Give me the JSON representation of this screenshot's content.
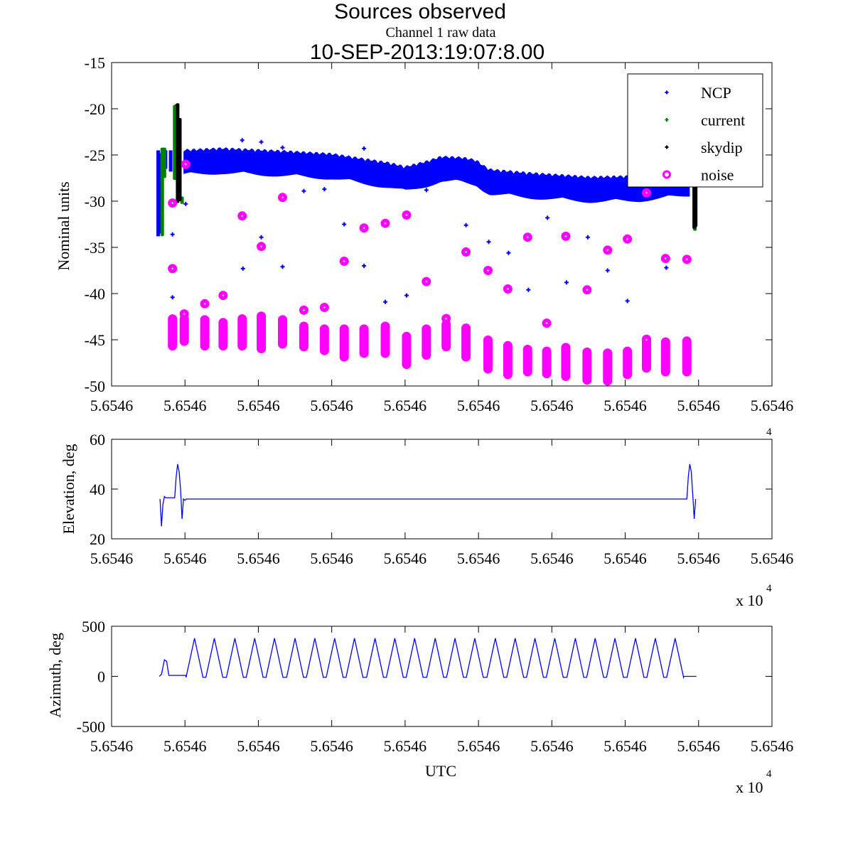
{
  "chart_data": [
    {
      "type": "scatter",
      "title": "Sources observed",
      "title_line2": "10-SEP-2013:19:07:8.00",
      "subtitle": "Channel 1 raw data",
      "xlabel": "",
      "ylabel": "Nominal units",
      "xlim": [
        0,
        900
      ],
      "x_tick_values": [
        0,
        100,
        200,
        300,
        400,
        500,
        600,
        700,
        800,
        900
      ],
      "x_tick_labels": [
        "5.6546",
        "5.6546",
        "5.6546",
        "5.6546",
        "5.6546",
        "5.6546",
        "5.6546",
        "5.6546",
        "5.6546",
        "5.6546"
      ],
      "x_multiplier": {
        "base": "x 10",
        "exp": "4"
      },
      "ylim": [
        -50,
        -15
      ],
      "y_ticks": [
        -15,
        -20,
        -25,
        -30,
        -35,
        -40,
        -45,
        -50
      ],
      "y_tick_labels": [
        "-15",
        "-20",
        "-25",
        "-30",
        "-35",
        "-40",
        "-45",
        "-50"
      ],
      "legend": {
        "placement": "top-right",
        "entries": [
          {
            "label": "NCP",
            "color": "#0000ff",
            "marker": "dot"
          },
          {
            "label": "current",
            "color": "#008000",
            "marker": "dot"
          },
          {
            "label": "skydip",
            "color": "#000000",
            "marker": "dot"
          },
          {
            "label": "noise",
            "color": "#ff00ff",
            "marker": "circle"
          }
        ]
      },
      "series": {
        "NCP_band": {
          "half_width": 1.1,
          "center": [
            [
              98,
              -25.8
            ],
            [
              150,
              -25.6
            ],
            [
              235,
              -25.9
            ],
            [
              300,
              -26.2
            ],
            [
              332,
              -26.6
            ],
            [
              380,
              -27.2
            ],
            [
              400,
              -27.6
            ],
            [
              430,
              -27.0
            ],
            [
              449,
              -26.5
            ],
            [
              478,
              -26.6
            ],
            [
              497,
              -26.9
            ],
            [
              507,
              -27.5
            ],
            [
              516,
              -27.9
            ],
            [
              575,
              -28.3
            ],
            [
              652,
              -28.7
            ],
            [
              720,
              -28.6
            ],
            [
              790,
              -28.0
            ]
          ]
        },
        "NCP_start_spike": [
          [
            63,
            -24.5,
            -33.8
          ],
          [
            66,
            -24.8,
            -33.5
          ],
          [
            73,
            -24.5,
            -26.5
          ],
          [
            80,
            -24.5,
            -26.8
          ],
          [
            87,
            -24.2,
            -27.0
          ]
        ],
        "NCP_points": [
          [
            83,
            -40.4
          ],
          [
            101,
            -30.3
          ],
          [
            83,
            -33.6
          ],
          [
            204,
            -33.9
          ],
          [
            179,
            -37.3
          ],
          [
            233,
            -37.1
          ],
          [
            262,
            -28.9
          ],
          [
            290,
            -28.7
          ],
          [
            317,
            -32.5
          ],
          [
            344,
            -37.0
          ],
          [
            373,
            -40.9
          ],
          [
            402,
            -40.2
          ],
          [
            429,
            -28.8
          ],
          [
            483,
            -32.6
          ],
          [
            514,
            -34.4
          ],
          [
            541,
            -35.6
          ],
          [
            568,
            -39.6
          ],
          [
            594,
            -31.8
          ],
          [
            620,
            -38.8
          ],
          [
            649,
            -33.9
          ],
          [
            676,
            -37.5
          ],
          [
            703,
            -40.8
          ],
          [
            756,
            -37.2
          ],
          [
            759,
            -27.8
          ],
          [
            178,
            -23.4
          ],
          [
            204,
            -23.6
          ],
          [
            233,
            -24.2
          ],
          [
            344,
            -24.3
          ]
        ],
        "current": [
          [
            69,
            -24.2,
            -33.8
          ],
          [
            72,
            -24.2,
            -27.5
          ],
          [
            86,
            -19.6,
            -27.7
          ],
          [
            88,
            -19.5,
            -25.0
          ],
          [
            96,
            -29.5,
            -30.3
          ],
          [
            795,
            -32.5,
            -33.2
          ]
        ],
        "skydip": [
          [
            90,
            -19.4,
            -30.2
          ],
          [
            93,
            -21.0,
            -30.0
          ],
          [
            794,
            -27.0,
            -33.0
          ],
          [
            796,
            -28.0,
            -32.8
          ]
        ],
        "noise_clusters": [
          [
            83,
            -42.7,
            -45.7
          ],
          [
            99,
            -42.7,
            -45.2
          ],
          [
            127,
            -42.8,
            -45.7
          ],
          [
            152,
            -43.1,
            -45.7
          ],
          [
            178,
            -42.7,
            -45.7
          ],
          [
            204,
            -42.4,
            -46.0
          ],
          [
            233,
            -42.8,
            -45.5
          ],
          [
            262,
            -43.5,
            -45.8
          ],
          [
            290,
            -43.8,
            -46.2
          ],
          [
            317,
            -43.8,
            -46.9
          ],
          [
            344,
            -43.8,
            -46.5
          ],
          [
            373,
            -43.5,
            -46.5
          ],
          [
            402,
            -44.6,
            -47.7
          ],
          [
            429,
            -43.8,
            -46.7
          ],
          [
            456,
            -43.3,
            -45.8
          ],
          [
            483,
            -43.7,
            -46.9
          ],
          [
            513,
            -45.0,
            -48.2
          ],
          [
            540,
            -45.6,
            -48.8
          ],
          [
            567,
            -46.0,
            -48.5
          ],
          [
            593,
            -46.2,
            -48.7
          ],
          [
            619,
            -45.8,
            -49.0
          ],
          [
            648,
            -46.3,
            -49.4
          ],
          [
            676,
            -46.4,
            -49.5
          ],
          [
            703,
            -46.2,
            -48.8
          ],
          [
            729,
            -44.9,
            -48.1
          ],
          [
            755,
            -45.2,
            -48.5
          ],
          [
            784,
            -45.1,
            -48.5
          ]
        ],
        "noise_points": [
          [
            83,
            -37.3
          ],
          [
            83,
            -30.2
          ],
          [
            99,
            -42.2
          ],
          [
            101,
            -26.0
          ],
          [
            127,
            -41.1
          ],
          [
            152,
            -40.2
          ],
          [
            178,
            -31.6
          ],
          [
            204,
            -34.9
          ],
          [
            233,
            -29.6
          ],
          [
            262,
            -41.8
          ],
          [
            290,
            -41.5
          ],
          [
            317,
            -36.5
          ],
          [
            344,
            -32.9
          ],
          [
            373,
            -32.4
          ],
          [
            402,
            -31.5
          ],
          [
            429,
            -38.7
          ],
          [
            456,
            -42.7
          ],
          [
            483,
            -35.5
          ],
          [
            513,
            -37.5
          ],
          [
            540,
            -39.5
          ],
          [
            567,
            -33.9
          ],
          [
            593,
            -43.2
          ],
          [
            619,
            -33.8
          ],
          [
            648,
            -39.6
          ],
          [
            676,
            -35.3
          ],
          [
            703,
            -34.1
          ],
          [
            729,
            -29.1
          ],
          [
            729,
            -45.0
          ],
          [
            755,
            -36.2
          ],
          [
            784,
            -36.3
          ]
        ]
      }
    },
    {
      "type": "line",
      "ylabel": "Elevation, deg",
      "xlim": [
        0,
        900
      ],
      "x_tick_labels": [
        "5.6546",
        "5.6546",
        "5.6546",
        "5.6546",
        "5.6546",
        "5.6546",
        "5.6546",
        "5.6546",
        "5.6546",
        "5.6546"
      ],
      "x_multiplier": {
        "base": "x 10",
        "exp": "4"
      },
      "ylim": [
        20,
        60
      ],
      "y_ticks": [
        20,
        40,
        60
      ],
      "y_tick_labels": [
        "20",
        "40",
        "60"
      ],
      "color": "#0000ff",
      "points": [
        [
          66,
          36
        ],
        [
          68,
          25
        ],
        [
          70,
          34
        ],
        [
          72,
          37
        ],
        [
          74,
          36.5
        ],
        [
          86,
          36.5
        ],
        [
          88,
          45
        ],
        [
          90,
          50
        ],
        [
          92,
          47
        ],
        [
          94,
          40
        ],
        [
          96,
          28
        ],
        [
          98,
          36
        ],
        [
          100,
          35.5
        ],
        [
          102,
          36
        ],
        [
          784,
          36
        ],
        [
          786,
          45
        ],
        [
          788,
          50
        ],
        [
          790,
          47
        ],
        [
          792,
          38
        ],
        [
          794,
          28
        ],
        [
          796,
          36
        ]
      ]
    },
    {
      "type": "line",
      "ylabel": "Azimuth, deg",
      "xlabel": "UTC",
      "xlim": [
        0,
        900
      ],
      "x_tick_labels": [
        "5.6546",
        "5.6546",
        "5.6546",
        "5.6546",
        "5.6546",
        "5.6546",
        "5.6546",
        "5.6546",
        "5.6546",
        "5.6546"
      ],
      "x_multiplier": {
        "base": "x 10",
        "exp": "4"
      },
      "ylim": [
        -500,
        500
      ],
      "y_ticks": [
        500,
        0,
        -500
      ],
      "y_tick_labels": [
        "500",
        "0",
        "-500"
      ],
      "color": "#0000ff",
      "start_points": [
        [
          65,
          0
        ],
        [
          68,
          20
        ],
        [
          72,
          165
        ],
        [
          75,
          150
        ],
        [
          78,
          10
        ],
        [
          101,
          10
        ]
      ],
      "sweep_peak_x": [
        113,
        140,
        168,
        195,
        222,
        250,
        277,
        304,
        331,
        359,
        386,
        413,
        441,
        468,
        495,
        523,
        550,
        577,
        604,
        632,
        659,
        686,
        714,
        741,
        768
      ],
      "sweep_peak_value": 380,
      "sweep_trough_value": -10,
      "sweep_half_width": 11.5,
      "end_points": [
        [
          780,
          0
        ],
        [
          797,
          0
        ]
      ]
    }
  ]
}
